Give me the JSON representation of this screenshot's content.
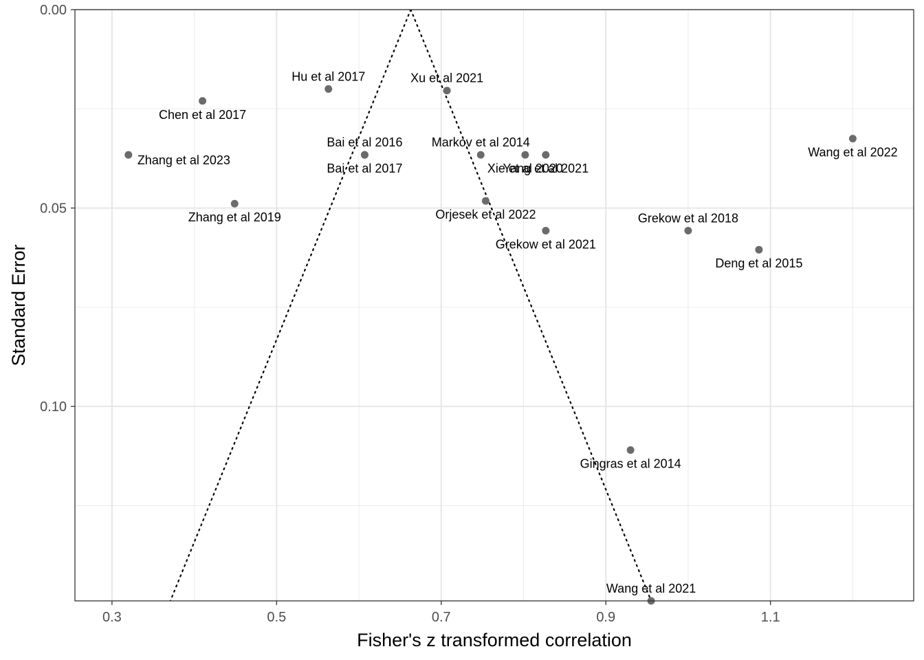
{
  "chart_data": {
    "type": "scatter",
    "subtype": "funnel-plot",
    "title": "",
    "xlabel": "Fisher's z transformed correlation",
    "ylabel": "Standard Error",
    "xlim": [
      0.255,
      1.274
    ],
    "ylim": [
      0.0,
      0.149
    ],
    "y_reversed": true,
    "x_ticks": [
      0.3,
      0.5,
      0.7,
      0.9,
      1.1
    ],
    "x_tick_labels": [
      "0.3",
      "0.5",
      "0.7",
      "0.9",
      "1.1"
    ],
    "y_ticks": [
      0.0,
      0.05,
      0.1
    ],
    "y_tick_labels": [
      "0.00",
      "0.05",
      "0.10"
    ],
    "grid": true,
    "legend": "none",
    "point_color": "#6b6b6b",
    "funnel": {
      "center": 0.663,
      "line_style": "dotted",
      "color": "#000000"
    },
    "series": [
      {
        "points": [
          {
            "label": "Chen et al 2017",
            "x": 0.41,
            "y": 0.023,
            "label_pos": "below"
          },
          {
            "label": "Hu et al 2017",
            "x": 0.563,
            "y": 0.02,
            "label_pos": "above"
          },
          {
            "label": "Xu et al 2021",
            "x": 0.707,
            "y": 0.0204,
            "label_pos": "above"
          },
          {
            "label": "Zhang et al 2023",
            "x": 0.32,
            "y": 0.0366,
            "label_pos": "right"
          },
          {
            "label": "Bai et al 2016",
            "x": 0.607,
            "y": 0.0366,
            "label_pos": "above"
          },
          {
            "label": "Bai et al 2017",
            "x": 0.607,
            "y": 0.0366,
            "label_pos": "below"
          },
          {
            "label": "Markov et al 2014",
            "x": 0.748,
            "y": 0.0366,
            "label_pos": "above"
          },
          {
            "label": "Xie et al 2020",
            "x": 0.802,
            "y": 0.0366,
            "label_pos": "below"
          },
          {
            "label": "Yang et al 2021",
            "x": 0.827,
            "y": 0.0366,
            "label_pos": "below"
          },
          {
            "label": "Wang et al 2022",
            "x": 1.2,
            "y": 0.0325,
            "label_pos": "below"
          },
          {
            "label": "Zhang et al 2019",
            "x": 0.449,
            "y": 0.0489,
            "label_pos": "below"
          },
          {
            "label": "Orjesek et al 2022",
            "x": 0.754,
            "y": 0.0482,
            "label_pos": "below"
          },
          {
            "label": "Grekow et al 2021",
            "x": 0.827,
            "y": 0.0557,
            "label_pos": "below"
          },
          {
            "label": "Grekow et al 2018",
            "x": 1.0,
            "y": 0.0557,
            "label_pos": "above"
          },
          {
            "label": "Deng et al 2015",
            "x": 1.086,
            "y": 0.0605,
            "label_pos": "below"
          },
          {
            "label": "Gingras et al 2014",
            "x": 0.93,
            "y": 0.111,
            "label_pos": "below"
          },
          {
            "label": "Wang et al 2021",
            "x": 0.955,
            "y": 0.149,
            "label_pos": "above"
          }
        ]
      }
    ]
  }
}
